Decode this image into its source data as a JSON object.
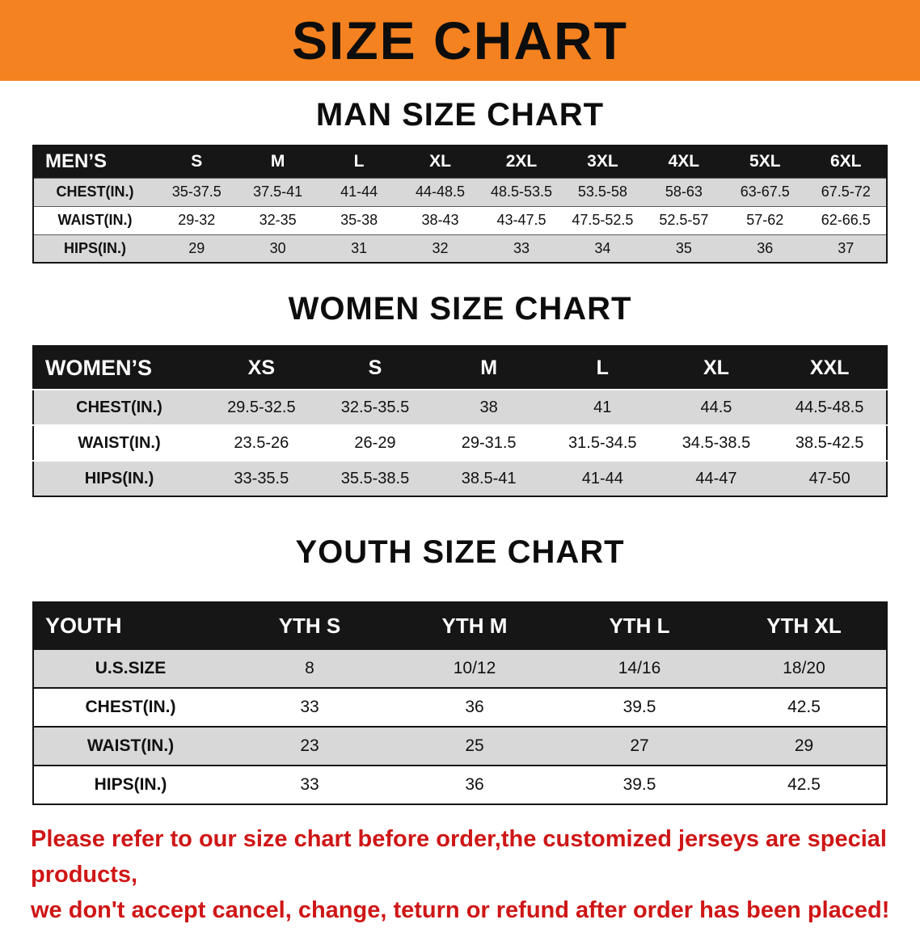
{
  "banner": {
    "title": "SIZE CHART"
  },
  "colors": {
    "banner_bg": "#f58220",
    "table_header_bg": "#161616",
    "row_stripe_gray": "#d8d8d8",
    "disclaimer_text": "#cf1616"
  },
  "sections": [
    {
      "heading": "MAN SIZE CHART",
      "table": {
        "header": [
          "MEN’S",
          "S",
          "M",
          "L",
          "XL",
          "2XL",
          "3XL",
          "4XL",
          "5XL",
          "6XL"
        ],
        "rows": [
          [
            "CHEST(IN.)",
            "35-37.5",
            "37.5-41",
            "41-44",
            "44-48.5",
            "48.5-53.5",
            "53.5-58",
            "58-63",
            "63-67.5",
            "67.5-72"
          ],
          [
            "WAIST(IN.)",
            "29-32",
            "32-35",
            "35-38",
            "38-43",
            "43-47.5",
            "47.5-52.5",
            "52.5-57",
            "57-62",
            "62-66.5"
          ],
          [
            "HIPS(IN.)",
            "29",
            "30",
            "31",
            "32",
            "33",
            "34",
            "35",
            "36",
            "37"
          ]
        ]
      }
    },
    {
      "heading": "WOMEN SIZE CHART",
      "table": {
        "header": [
          "WOMEN’S",
          "XS",
          "S",
          "M",
          "L",
          "XL",
          "XXL"
        ],
        "rows": [
          [
            "CHEST(IN.)",
            "29.5-32.5",
            "32.5-35.5",
            "38",
            "41",
            "44.5",
            "44.5-48.5"
          ],
          [
            "WAIST(IN.)",
            "23.5-26",
            "26-29",
            "29-31.5",
            "31.5-34.5",
            "34.5-38.5",
            "38.5-42.5"
          ],
          [
            "HIPS(IN.)",
            "33-35.5",
            "35.5-38.5",
            "38.5-41",
            "41-44",
            "44-47",
            "47-50"
          ]
        ]
      }
    },
    {
      "heading": "YOUTH SIZE CHART",
      "table": {
        "header": [
          "YOUTH",
          "YTH S",
          "YTH M",
          "YTH L",
          "YTH XL"
        ],
        "rows": [
          [
            "U.S.SIZE",
            "8",
            "10/12",
            "14/16",
            "18/20"
          ],
          [
            "CHEST(IN.)",
            "33",
            "36",
            "39.5",
            "42.5"
          ],
          [
            "WAIST(IN.)",
            "23",
            "25",
            "27",
            "29"
          ],
          [
            "HIPS(IN.)",
            "33",
            "36",
            "39.5",
            "42.5"
          ]
        ]
      }
    }
  ],
  "disclaimer": {
    "lines": [
      "Please refer to our size chart before order,the customized jerseys are special products,",
      "we don't accept cancel, change, teturn or refund after order has been placed!"
    ]
  }
}
